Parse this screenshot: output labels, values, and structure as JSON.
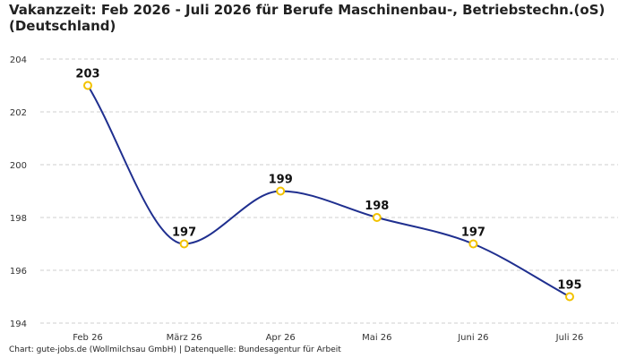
{
  "title": "Vakanzzeit: Feb 2026 - Juli 2026 für Berufe Maschinenbau-, Betriebstechn.(oS) (Deutschland)",
  "footer": "Chart: gute-jobs.de (Wollmilchsau GmbH) | Datenquelle: Bundesagentur für Arbeit",
  "chart_data": {
    "type": "line",
    "title": "Vakanzzeit: Feb 2026 - Juli 2026 für Berufe Maschinenbau-, Betriebstechn.(oS) (Deutschland)",
    "xlabel": "",
    "ylabel": "",
    "categories": [
      "Feb 26",
      "März 26",
      "Apr 26",
      "Mai 26",
      "Juni 26",
      "Juli 26"
    ],
    "series": [
      {
        "values": [
          203,
          197,
          199,
          198,
          197,
          195
        ]
      }
    ],
    "ylim": [
      194,
      204
    ],
    "yticks": [
      194,
      196,
      198,
      200,
      202,
      204
    ],
    "grid": true,
    "legend": "none",
    "smooth": true,
    "colors": {
      "line": "#1f2f8f",
      "marker_stroke": "#f2c200",
      "marker_fill": "#ffffff",
      "grid": "#cfcfcf"
    }
  }
}
